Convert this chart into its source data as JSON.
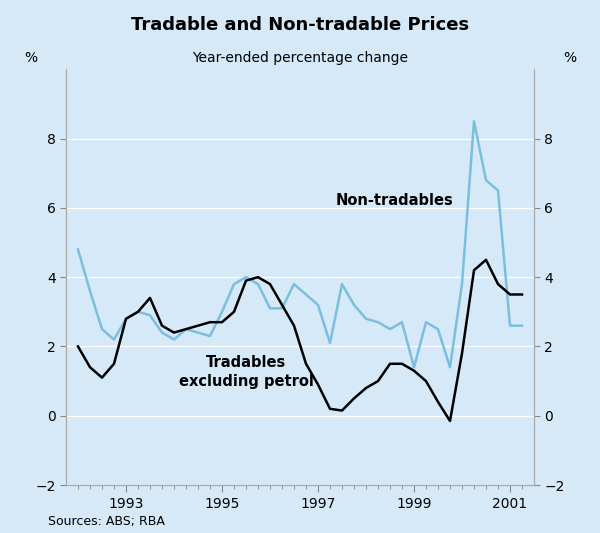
{
  "title": "Tradable and Non-tradable Prices",
  "subtitle": "Year-ended percentage change",
  "ylabel_left": "%",
  "ylabel_right": "%",
  "source": "Sources: ABS; RBA",
  "background_color": "#d6e9f8",
  "ylim": [
    -2,
    10
  ],
  "yticks": [
    -2,
    0,
    2,
    4,
    6,
    8
  ],
  "tradables_label_line1": "Tradables",
  "tradables_label_line2": "excluding petrol",
  "nontradables_label": "Non-tradables",
  "tradables_color": "#000000",
  "nontradables_color": "#7bbfde",
  "tradables_x": [
    1992.0,
    1992.25,
    1992.5,
    1992.75,
    1993.0,
    1993.25,
    1993.5,
    1993.75,
    1994.0,
    1994.25,
    1994.5,
    1994.75,
    1995.0,
    1995.25,
    1995.5,
    1995.75,
    1996.0,
    1996.25,
    1996.5,
    1996.75,
    1997.0,
    1997.25,
    1997.5,
    1997.75,
    1998.0,
    1998.25,
    1998.5,
    1998.75,
    1999.0,
    1999.25,
    1999.5,
    1999.75,
    2000.0,
    2000.25,
    2000.5,
    2000.75,
    2001.0,
    2001.25
  ],
  "tradables_y": [
    2.0,
    1.4,
    1.1,
    1.5,
    2.8,
    3.0,
    3.4,
    2.6,
    2.4,
    2.5,
    2.6,
    2.7,
    2.7,
    3.0,
    3.9,
    4.0,
    3.8,
    3.2,
    2.6,
    1.5,
    0.9,
    0.2,
    0.15,
    0.5,
    0.8,
    1.0,
    1.5,
    1.5,
    1.3,
    1.0,
    0.4,
    -0.15,
    1.8,
    4.2,
    4.5,
    3.8,
    3.5,
    3.5
  ],
  "nontradables_x": [
    1992.0,
    1992.25,
    1992.5,
    1992.75,
    1993.0,
    1993.25,
    1993.5,
    1993.75,
    1994.0,
    1994.25,
    1994.5,
    1994.75,
    1995.0,
    1995.25,
    1995.5,
    1995.75,
    1996.0,
    1996.25,
    1996.5,
    1996.75,
    1997.0,
    1997.25,
    1997.5,
    1997.75,
    1998.0,
    1998.25,
    1998.5,
    1998.75,
    1999.0,
    1999.25,
    1999.5,
    1999.75,
    2000.0,
    2000.25,
    2000.5,
    2000.75,
    2001.0,
    2001.25
  ],
  "nontradables_y": [
    4.8,
    3.6,
    2.5,
    2.2,
    2.8,
    3.0,
    2.9,
    2.4,
    2.2,
    2.5,
    2.4,
    2.3,
    3.0,
    3.8,
    4.0,
    3.8,
    3.1,
    3.1,
    3.8,
    3.5,
    3.2,
    2.1,
    3.8,
    3.2,
    2.8,
    2.7,
    2.5,
    2.7,
    1.4,
    2.7,
    2.5,
    1.4,
    3.8,
    8.5,
    6.8,
    6.5,
    2.6,
    2.6
  ],
  "minor_xticks": [
    1992.0,
    1992.25,
    1992.5,
    1992.75,
    1993.0,
    1993.25,
    1993.5,
    1993.75,
    1994.0,
    1994.25,
    1994.5,
    1994.75,
    1995.0,
    1995.25,
    1995.5,
    1995.75,
    1996.0,
    1996.25,
    1996.5,
    1996.75,
    1997.0,
    1997.25,
    1997.5,
    1997.75,
    1998.0,
    1998.25,
    1998.5,
    1998.75,
    1999.0,
    1999.25,
    1999.5,
    1999.75,
    2000.0,
    2000.25,
    2000.5,
    2000.75,
    2001.0,
    2001.25
  ],
  "major_xticks": [
    1993,
    1995,
    1997,
    1999,
    2001
  ],
  "xlim": [
    1991.75,
    2001.5
  ]
}
